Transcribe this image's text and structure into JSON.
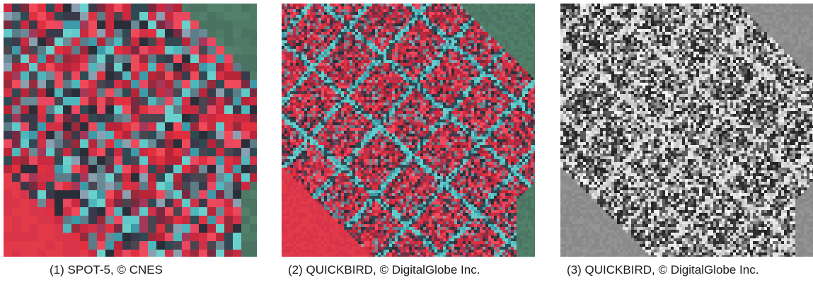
{
  "panels": [
    {
      "number": "(1)",
      "sensor_first": "S",
      "sensor_rest": "POT-5",
      "copyright": "©",
      "owner": "CNES",
      "style": "coarse-false-color"
    },
    {
      "number": "(2)",
      "sensor_first": "Q",
      "sensor_rest": "UICK",
      "sensor_first2": "B",
      "sensor_rest2": "IRD",
      "copyright": "©",
      "owner": "DigitalGlobe Inc.",
      "style": "fine-false-color"
    },
    {
      "number": "(3)",
      "sensor_first": "Q",
      "sensor_rest": "UICK",
      "sensor_first2": "B",
      "sensor_rest2": "IRD",
      "copyright": "©",
      "owner": "DigitalGlobe Inc.",
      "style": "panchromatic"
    }
  ],
  "colors": {
    "vegetation_red": "#e0303f",
    "road_cyan": "#5fc8c8",
    "field_green": "#4f7a66",
    "pan_light": "#d8d8d8",
    "pan_dark": "#3a3a3a"
  }
}
